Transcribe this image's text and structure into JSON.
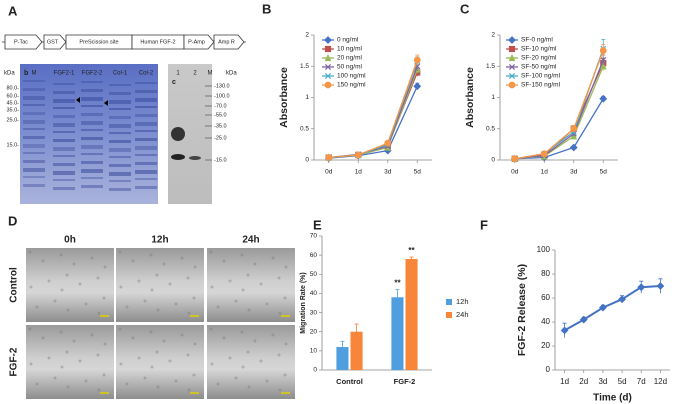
{
  "panel_a": {
    "panel": "A",
    "construct": [
      "P-Tac",
      "GST",
      "PreScission site",
      "Human FGF-2",
      "P-Amp",
      "Amp R"
    ],
    "gels": [
      {
        "label": "b",
        "unit": "kDa",
        "lanes": [
          "M",
          "FGF2-1",
          "FGF2-2",
          "Col-1",
          "Col-2"
        ],
        "markers": [
          "80.0-",
          "60.0-",
          "45.0-",
          "35.0-",
          "25.0-",
          "15.0-"
        ]
      },
      {
        "label": "c",
        "unit": "kDa",
        "lanes": [
          "1",
          "2",
          "M"
        ],
        "markers": [
          "-130.0",
          "-100.0",
          "-70.0",
          "-55.0",
          "-35.0",
          "-25.0",
          "-15.0"
        ]
      }
    ]
  },
  "panel_d": {
    "panel": "D",
    "columns": [
      "0h",
      "12h",
      "24h"
    ],
    "rows": [
      "Control",
      "FGF-2"
    ]
  },
  "chart_data": [
    {
      "type": "line",
      "panel": "B",
      "y_label": "Absorbance",
      "categories": [
        "0d",
        "1d",
        "3d",
        "5d"
      ],
      "ylim": [
        0,
        2
      ],
      "yticks": [
        0,
        0.5,
        1,
        1.5,
        2
      ],
      "series": [
        {
          "name": "0 ng/ml",
          "color": "#4472c4",
          "marker": "diamond",
          "values": [
            0.03,
            0.07,
            0.15,
            1.18
          ],
          "errors": [
            0.01,
            0.01,
            0.02,
            0.05
          ]
        },
        {
          "name": "10 ng/ml",
          "color": "#c0504d",
          "marker": "square",
          "values": [
            0.04,
            0.08,
            0.22,
            1.4
          ],
          "errors": [
            0.01,
            0.01,
            0.02,
            0.06
          ]
        },
        {
          "name": "20 ng/ml",
          "color": "#9bbb59",
          "marker": "triangle",
          "values": [
            0.04,
            0.08,
            0.2,
            1.45
          ],
          "errors": [
            0.01,
            0.01,
            0.02,
            0.06
          ]
        },
        {
          "name": "50 ng/ml",
          "color": "#8064a2",
          "marker": "x",
          "values": [
            0.04,
            0.09,
            0.22,
            1.5
          ],
          "errors": [
            0.01,
            0.01,
            0.02,
            0.07
          ]
        },
        {
          "name": "100 ng/ml",
          "color": "#4bacc6",
          "marker": "x",
          "values": [
            0.04,
            0.08,
            0.25,
            1.58
          ],
          "errors": [
            0.01,
            0.01,
            0.02,
            0.07
          ]
        },
        {
          "name": "150 ng/ml",
          "color": "#f79646",
          "marker": "circle",
          "values": [
            0.04,
            0.08,
            0.27,
            1.6
          ],
          "errors": [
            0.01,
            0.01,
            0.02,
            0.08
          ]
        }
      ]
    },
    {
      "type": "line",
      "panel": "C",
      "y_label": "Absorbance",
      "categories": [
        "0d",
        "1d",
        "3d",
        "5d"
      ],
      "ylim": [
        0,
        2
      ],
      "yticks": [
        0,
        0.5,
        1,
        1.5,
        2
      ],
      "series": [
        {
          "name": "SF-0 ng/ml",
          "color": "#4472c4",
          "marker": "diamond",
          "values": [
            0.02,
            0.04,
            0.2,
            0.98
          ],
          "errors": [
            0.01,
            0.01,
            0.02,
            0.04
          ]
        },
        {
          "name": "SF-10 ng/ml",
          "color": "#c0504d",
          "marker": "square",
          "values": [
            0.02,
            0.08,
            0.5,
            1.55
          ],
          "errors": [
            0.01,
            0.02,
            0.05,
            0.08
          ]
        },
        {
          "name": "SF-20 ng/ml",
          "color": "#9bbb59",
          "marker": "triangle",
          "values": [
            0.02,
            0.06,
            0.38,
            1.5
          ],
          "errors": [
            0.01,
            0.02,
            0.04,
            0.07
          ]
        },
        {
          "name": "SF-50 ng/ml",
          "color": "#8064a2",
          "marker": "x",
          "values": [
            0.02,
            0.07,
            0.42,
            1.6
          ],
          "errors": [
            0.01,
            0.02,
            0.04,
            0.08
          ]
        },
        {
          "name": "SF-100 ng/ml",
          "color": "#4bacc6",
          "marker": "x",
          "values": [
            0.02,
            0.1,
            0.45,
            1.78
          ],
          "errors": [
            0.01,
            0.02,
            0.04,
            0.15
          ]
        },
        {
          "name": "SF-150 ng/ml",
          "color": "#f79646",
          "marker": "circle",
          "values": [
            0.02,
            0.1,
            0.5,
            1.75
          ],
          "errors": [
            0.01,
            0.02,
            0.05,
            0.1
          ]
        }
      ]
    },
    {
      "type": "bar",
      "panel": "E",
      "y_label": "Migration Rate (%)",
      "categories": [
        "Control",
        "FGF-2"
      ],
      "ylim": [
        0,
        70
      ],
      "yticks": [
        0,
        10,
        20,
        30,
        40,
        50,
        60,
        70
      ],
      "series": [
        {
          "name": "12h",
          "color": "#4f9fe0",
          "values": [
            12,
            38
          ],
          "errors": [
            3,
            4
          ],
          "labels": [
            null,
            "**"
          ]
        },
        {
          "name": "24h",
          "color": "#f7863a",
          "values": [
            20,
            58
          ],
          "errors": [
            4,
            1
          ],
          "labels": [
            null,
            "**"
          ]
        }
      ]
    },
    {
      "type": "line",
      "panel": "F",
      "y_label": "FGF-2 Release (%)",
      "x_label": "Time (d)",
      "categories": [
        "1d",
        "2d",
        "3d",
        "5d",
        "7d",
        "12d"
      ],
      "ylim": [
        0,
        100
      ],
      "yticks": [
        0,
        20,
        40,
        60,
        80,
        100
      ],
      "series": [
        {
          "color": "#4472c4",
          "marker": "diamond",
          "values": [
            33,
            42,
            52,
            59,
            69,
            70
          ],
          "errors": [
            6,
            2,
            2,
            3,
            5,
            6
          ]
        }
      ]
    }
  ]
}
